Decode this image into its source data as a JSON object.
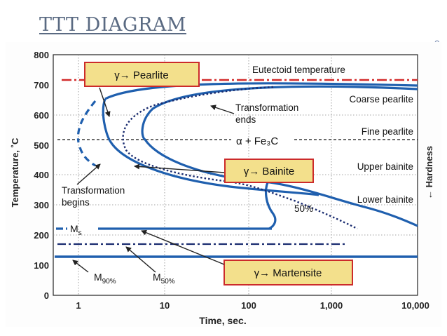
{
  "page": {
    "title": "TTT DIAGRAM",
    "corner_glyph": "∘"
  },
  "diagram": {
    "y_axis_label": "Temperature, ˚C",
    "x_axis_label": "Time, sec.",
    "right_axis_label": "← Hardness",
    "y_ticks": [
      "800",
      "700",
      "600",
      "500",
      "400",
      "300",
      "200",
      "100",
      "0"
    ],
    "x_ticks": [
      "1",
      "10",
      "100",
      "1,000",
      "10,000"
    ],
    "lines": {
      "eutectoid": "Eutectoid temperature",
      "alpha_fe3c": "α + Fe₃C"
    },
    "boxes": {
      "pearlite": "γ→ Pearlite",
      "bainite": "γ→ Bainite",
      "martensite": "γ→ Martensite"
    },
    "labels": {
      "transformation_ends_1": "Transformation",
      "transformation_ends_2": "ends",
      "transformation_begins_1": "Transformation",
      "transformation_begins_2": "begins",
      "fifty_percent": "50%",
      "ms": "M",
      "ms_sub": "s",
      "m90": "M",
      "m90_sub": "90%",
      "m50": "M",
      "m50_sub": "50%"
    },
    "products": {
      "coarse_pearlite": "Coarse pearlite",
      "fine_pearlite": "Fine pearlite",
      "upper_bainite": "Upper bainite",
      "lower_bainite": "Lower bainite"
    },
    "colors": {
      "curve_blue": "#1f5fae",
      "red_line": "#d22b2b",
      "box_fill": "#f3e08c",
      "box_border": "#cc2b2b",
      "navy": "#1a2c70"
    }
  }
}
